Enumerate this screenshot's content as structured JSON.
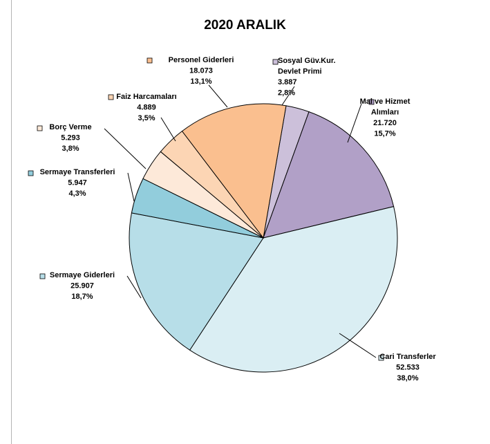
{
  "chart_data": {
    "type": "pie",
    "title": "2020 ARALIK",
    "slices": [
      {
        "name": "Sosyal Güv.Kur. Devlet Primi",
        "name_lines": [
          "Sosyal Güv.Kur.",
          "Devlet Primi"
        ],
        "value": 3.887,
        "value_label": "3.887",
        "percent_label": "2,8%",
        "color": "#ccc0da"
      },
      {
        "name": "Mal ve Hizmet Alımları",
        "name_lines": [
          "Mal ve Hizmet",
          "Alımları"
        ],
        "value": 21.72,
        "value_label": "21.720",
        "percent_label": "15,7%",
        "color": "#b1a0c7"
      },
      {
        "name": "Cari Transferler",
        "name_lines": [
          "Cari Transferler"
        ],
        "value": 52.533,
        "value_label": "52.533",
        "percent_label": "38,0%",
        "color": "#daeef3"
      },
      {
        "name": "Sermaye Giderleri",
        "name_lines": [
          "Sermaye Giderleri"
        ],
        "value": 25.907,
        "value_label": "25.907",
        "percent_label": "18,7%",
        "color": "#b7dee8"
      },
      {
        "name": "Sermaye Transferleri",
        "name_lines": [
          "Sermaye Transferleri"
        ],
        "value": 5.947,
        "value_label": "5.947",
        "percent_label": "4,3%",
        "color": "#92cddc"
      },
      {
        "name": "Borç Verme",
        "name_lines": [
          "Borç Verme"
        ],
        "value": 5.293,
        "value_label": "5.293",
        "percent_label": "3,8%",
        "color": "#fde9d9"
      },
      {
        "name": "Faiz Harcamaları",
        "name_lines": [
          "Faiz Harcamaları"
        ],
        "value": 4.889,
        "value_label": "4.889",
        "percent_label": "3,5%",
        "color": "#fcd5b4"
      },
      {
        "name": "Personel Giderleri",
        "name_lines": [
          "Personel Giderleri"
        ],
        "value": 18.073,
        "value_label": "18.073",
        "percent_label": "13,1%",
        "color": "#fabf8f"
      }
    ]
  }
}
